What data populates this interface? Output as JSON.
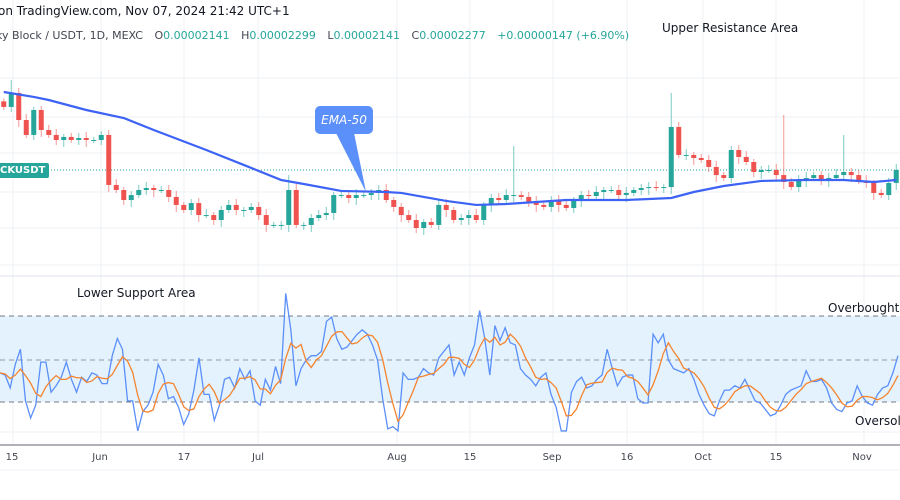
{
  "header": {
    "source_line": "on TradingView.com, Nov 07, 2024 21:42 UTC+1",
    "symbol_line": "ky Block / USDT, 1D, MEXC",
    "open_label": "O",
    "open": "0.00002141",
    "high_label": "H",
    "high": "0.00002299",
    "low_label": "L",
    "low": "0.00002141",
    "close_label": "C",
    "close": "0.00002277",
    "change": "+0.00000147 (+6.90%)"
  },
  "annotations": {
    "upper": "Upper Resistance Area",
    "lower": "Lower Support Area",
    "overbought": "Overbought R",
    "oversold": "Oversold",
    "ema_callout": "EMA-50",
    "symbol_tag": "CKUSDT"
  },
  "colors": {
    "up": "#26a69a",
    "down": "#ef5350",
    "ema": "#3d63f5",
    "rsi": "#5b8ff9",
    "rsi_signal": "#f5842f",
    "rsi_band": "#e3f2fd"
  },
  "chart_data": [
    {
      "type": "candlestick",
      "title": "",
      "x_ticks": [
        "15",
        "Jun",
        "17",
        "Jul",
        "Aug",
        "15",
        "Sep",
        "16",
        "Oct",
        "15",
        "Nov"
      ],
      "last_close": 2.277e-05,
      "closes": [
        2.939e-05,
        3.086e-05,
        2.802e-05,
        2.645e-05,
        2.907e-05,
        2.697e-05,
        2.645e-05,
        2.592e-05,
        2.624e-05,
        2.592e-05,
        2.613e-05,
        2.592e-05,
        2.592e-05,
        2.645e-05,
        2.12e-05,
        2.067e-05,
        1.962e-05,
        2.014e-05,
        2.067e-05,
        2.088e-05,
        2.067e-05,
        2.067e-05,
        1.994e-05,
        1.91e-05,
        1.857e-05,
        1.93e-05,
        1.804e-05,
        1.804e-05,
        1.752e-05,
        1.857e-05,
        1.91e-05,
        1.857e-05,
        1.857e-05,
        1.889e-05,
        1.804e-05,
        1.7e-05,
        1.7e-05,
        1.7e-05,
        2.067e-05,
        1.7e-05,
        1.7e-05,
        1.773e-05,
        1.804e-05,
        1.826e-05,
        2.014e-05,
        2.014e-05,
        1.983e-05,
        2.014e-05,
        2.014e-05,
        2.036e-05,
        2.067e-05,
        1.962e-05,
        1.889e-05,
        1.804e-05,
        1.752e-05,
        1.668e-05,
        1.731e-05,
        1.7e-05,
        1.91e-05,
        1.857e-05,
        1.752e-05,
        1.773e-05,
        1.804e-05,
        1.752e-05,
        1.91e-05,
        1.983e-05,
        1.962e-05,
        2.014e-05,
        2.014e-05,
        1.994e-05,
        1.941e-05,
        1.91e-05,
        1.889e-05,
        1.962e-05,
        1.91e-05,
        1.878e-05,
        1.962e-05,
        2.014e-05,
        2.004e-05,
        2.046e-05,
        2.067e-05,
        2.067e-05,
        2.014e-05,
        2.036e-05,
        2.067e-05,
        2.088e-05,
        2.098e-05,
        2.088e-05,
        2.098e-05,
        2.729e-05,
        2.435e-05,
        2.435e-05,
        2.403e-05,
        2.382e-05,
        2.309e-05,
        2.224e-05,
        2.193e-05,
        2.487e-05,
        2.414e-05,
        2.361e-05,
        2.256e-05,
        2.277e-05,
        2.277e-05,
        2.224e-05,
        2.151e-05,
        2.098e-05,
        2.172e-05,
        2.193e-05,
        2.224e-05,
        2.172e-05,
        2.193e-05,
        2.224e-05,
        2.256e-05,
        2.224e-05,
        2.161e-05,
        2.141e-05,
        2.036e-05,
        2.014e-05,
        2.141e-05,
        2.277e-05
      ],
      "wick_highs": [
        [
          1,
          3.222e-05
        ],
        [
          38,
          2.224e-05
        ],
        [
          68,
          2.529e-05
        ],
        [
          89,
          3.086e-05
        ],
        [
          90,
          2.781e-05
        ],
        [
          104,
          2.855e-05
        ],
        [
          112,
          2.645e-05
        ]
      ],
      "ema50": {
        "name": "EMA-50",
        "points": [
          [
            0,
            3.096e-05
          ],
          [
            4,
            3.044e-05
          ],
          [
            6,
            3.012e-05
          ],
          [
            11,
            2.907e-05
          ],
          [
            16,
            2.823e-05
          ],
          [
            20,
            2.697e-05
          ],
          [
            27,
            2.487e-05
          ],
          [
            32,
            2.33e-05
          ],
          [
            37,
            2.172e-05
          ],
          [
            40,
            2.13e-05
          ],
          [
            45,
            2.057e-05
          ],
          [
            51,
            2.046e-05
          ],
          [
            53,
            2.036e-05
          ],
          [
            59,
            1.952e-05
          ],
          [
            63,
            1.91e-05
          ],
          [
            67,
            1.92e-05
          ],
          [
            75,
            1.962e-05
          ],
          [
            83,
            1.962e-05
          ],
          [
            89,
            1.983e-05
          ],
          [
            92,
            2.046e-05
          ],
          [
            96,
            2.109e-05
          ],
          [
            101,
            2.162e-05
          ],
          [
            107,
            2.172e-05
          ],
          [
            112,
            2.172e-05
          ],
          [
            116,
            2.151e-05
          ],
          [
            119,
            2.172e-05
          ]
        ]
      }
    },
    {
      "type": "line",
      "title": "",
      "levels": {
        "overbought": 70,
        "middle": 50,
        "oversold": 30
      },
      "rsi": [
        44,
        43,
        37,
        48,
        55,
        31,
        23,
        29,
        49,
        49,
        35,
        38,
        42,
        49,
        41,
        35,
        42,
        40,
        44,
        43,
        39,
        39,
        52,
        60,
        55,
        31,
        31,
        17,
        26,
        29,
        35,
        48,
        43,
        32,
        33,
        28,
        20,
        25,
        36,
        51,
        34,
        34,
        22,
        29,
        41,
        42,
        37,
        46,
        41,
        45,
        31,
        29,
        41,
        36,
        47,
        39,
        81,
        64,
        38,
        46,
        50,
        52,
        52,
        54,
        68,
        70,
        60,
        55,
        56,
        59,
        62,
        64,
        62,
        57,
        50,
        32,
        18,
        19,
        17,
        44,
        41,
        41,
        42,
        46,
        44,
        43,
        51,
        54,
        57,
        43,
        49,
        43,
        51,
        57,
        73,
        60,
        43,
        66,
        59,
        65,
        58,
        57,
        46,
        43,
        41,
        38,
        42,
        44,
        34,
        28,
        17,
        17,
        35,
        40,
        42,
        37,
        38,
        41,
        43,
        55,
        46,
        38,
        42,
        43,
        43,
        32,
        30,
        30,
        62,
        58,
        62,
        50,
        46,
        45,
        44,
        46,
        41,
        34,
        29,
        25,
        24,
        31,
        36,
        36,
        38,
        37,
        41,
        36,
        31,
        30,
        27,
        24,
        25,
        29,
        34,
        36,
        37,
        38,
        45,
        40,
        40,
        41,
        37,
        30,
        27,
        26,
        30,
        31,
        38,
        33,
        30,
        29,
        34,
        37,
        38,
        44,
        52
      ]
    }
  ]
}
